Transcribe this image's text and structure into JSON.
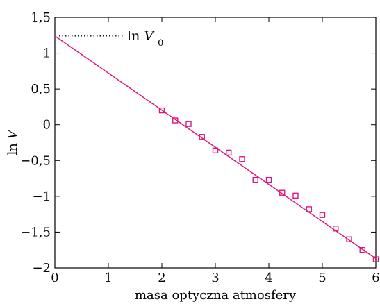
{
  "chart_data": {
    "type": "scatter",
    "xlabel": "masa optyczna atmosfery",
    "ylabel": "ln V",
    "xlim": [
      0,
      6
    ],
    "ylim": [
      -2,
      1.5
    ],
    "x_ticks": [
      0,
      1,
      2,
      3,
      4,
      5,
      6
    ],
    "x_tick_labels": [
      "0",
      "1",
      "2",
      "3",
      "4",
      "5",
      "6"
    ],
    "y_ticks": [
      1.5,
      1,
      0.5,
      0,
      -0.5,
      -1,
      -1.5,
      -2
    ],
    "y_tick_labels": [
      "1,5",
      "1",
      "0,5",
      "0",
      "−0,5",
      "−1",
      "−1,5",
      "−2"
    ],
    "grid": false,
    "series": [
      {
        "marker": "square",
        "color": "#e0167a",
        "x": [
          2.0,
          2.25,
          2.5,
          2.75,
          3.0,
          3.25,
          3.5,
          3.75,
          4.0,
          4.25,
          4.5,
          4.75,
          5.0,
          5.25,
          5.5,
          5.75,
          6.0
        ],
        "y": [
          0.2,
          0.06,
          0.01,
          -0.17,
          -0.36,
          -0.39,
          -0.48,
          -0.77,
          -0.77,
          -0.95,
          -0.99,
          -1.18,
          -1.26,
          -1.45,
          -1.6,
          -1.75,
          -1.88
        ]
      }
    ],
    "fit_line": {
      "x": [
        0,
        6
      ],
      "y": [
        1.24,
        -1.87
      ],
      "color": "#e0167a"
    },
    "annotation": {
      "text_main": "ln",
      "text_var": "V",
      "text_sub": "0",
      "y": 1.24
    }
  }
}
